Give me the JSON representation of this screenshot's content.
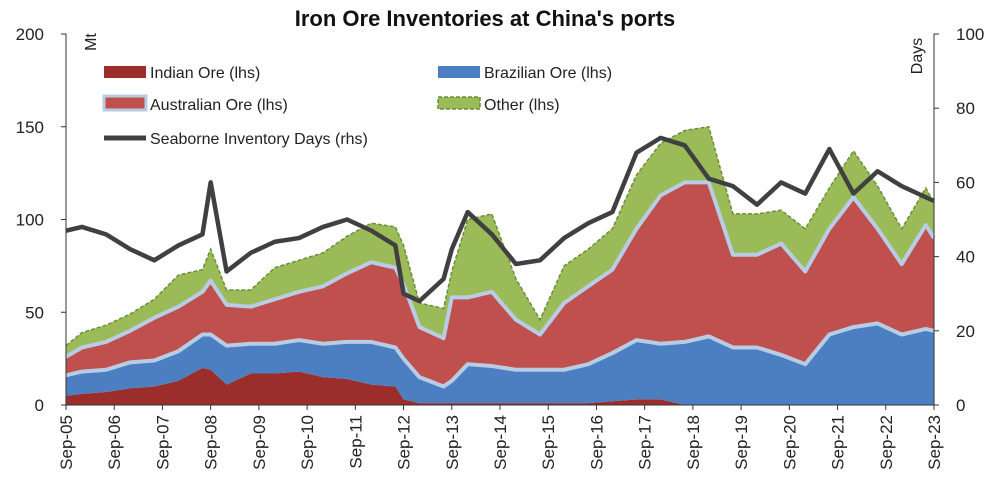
{
  "chart_data": {
    "type": "area",
    "title": "Iron Ore Inventories at China's ports",
    "ylabel_left": "Mt",
    "ylabel_right": "Days",
    "ylim_left": [
      0,
      200
    ],
    "ylim_right": [
      0,
      100
    ],
    "yticks_left": [
      "0",
      "50",
      "100",
      "150",
      "200"
    ],
    "yticks_right": [
      "0",
      "20",
      "40",
      "60",
      "80",
      "100"
    ],
    "grid": false,
    "legend_position": "top-left",
    "categories": [
      "Sep-05",
      "Sep-06",
      "Sep-07",
      "Sep-08",
      "Sep-09",
      "Sep-10",
      "Sep-11",
      "Sep-12",
      "Sep-13",
      "Sep-14",
      "Sep-15",
      "Sep-16",
      "Sep-17",
      "Sep-18",
      "Sep-19",
      "Sep-20",
      "Sep-21",
      "Sep-22",
      "Sep-23"
    ],
    "x": [
      2005.67,
      2006.0,
      2006.5,
      2007.0,
      2007.5,
      2008.0,
      2008.5,
      2008.67,
      2009.0,
      2009.5,
      2010.0,
      2010.5,
      2011.0,
      2011.5,
      2012.0,
      2012.5,
      2012.67,
      2013.0,
      2013.5,
      2013.67,
      2014.0,
      2014.5,
      2015.0,
      2015.5,
      2016.0,
      2016.5,
      2017.0,
      2017.5,
      2018.0,
      2018.5,
      2019.0,
      2019.5,
      2020.0,
      2020.5,
      2021.0,
      2021.5,
      2022.0,
      2022.5,
      2023.0,
      2023.5,
      2023.67
    ],
    "series": [
      {
        "name": "Indian Ore (lhs)",
        "color": "#9b2d2a",
        "values": [
          5,
          6,
          7,
          9,
          10,
          13,
          20,
          19,
          11,
          17,
          17,
          18,
          15,
          14,
          11,
          10,
          3,
          1,
          1,
          1,
          1,
          1,
          1,
          1,
          1,
          1,
          2,
          3,
          3,
          0,
          0,
          0,
          0,
          0,
          0,
          0,
          0,
          0,
          0,
          0,
          0
        ]
      },
      {
        "name": "Brazilian Ore (lhs)",
        "color": "#4b7fc1",
        "values": [
          11,
          12,
          12,
          14,
          14,
          16,
          18,
          19,
          21,
          16,
          16,
          17,
          18,
          20,
          23,
          21,
          22,
          14,
          9,
          12,
          21,
          20,
          18,
          18,
          18,
          21,
          26,
          32,
          30,
          34,
          37,
          31,
          31,
          27,
          22,
          38,
          42,
          44,
          38,
          41,
          40
        ]
      },
      {
        "name": "Australian Ore (lhs)",
        "color": "#c0504d",
        "values": [
          10,
          13,
          15,
          17,
          23,
          24,
          23,
          29,
          22,
          20,
          24,
          26,
          31,
          37,
          43,
          43,
          40,
          27,
          26,
          45,
          36,
          40,
          27,
          19,
          36,
          42,
          45,
          60,
          80,
          86,
          83,
          50,
          50,
          60,
          50,
          57,
          70,
          51,
          38,
          56,
          50
        ]
      },
      {
        "name": "Other (lhs)",
        "color": "#9bbb59",
        "values": [
          6,
          8,
          9,
          9,
          10,
          17,
          12,
          17,
          8,
          9,
          17,
          17,
          18,
          20,
          21,
          22,
          21,
          13,
          16,
          14,
          42,
          42,
          22,
          8,
          20,
          20,
          22,
          29,
          28,
          28,
          30,
          22,
          22,
          18,
          23,
          22,
          25,
          23,
          19,
          20,
          19
        ]
      },
      {
        "name": "Seaborne Inventory Days (rhs)",
        "color": "#404040",
        "axis": "right",
        "values": [
          47,
          48,
          46,
          42,
          39,
          43,
          46,
          60,
          36,
          41,
          44,
          45,
          48,
          50,
          47,
          43,
          30,
          28,
          34,
          42,
          52,
          46,
          38,
          39,
          45,
          49,
          52,
          68,
          72,
          70,
          61,
          59,
          54,
          60,
          57,
          69,
          57,
          63,
          59,
          56,
          55
        ]
      }
    ]
  }
}
